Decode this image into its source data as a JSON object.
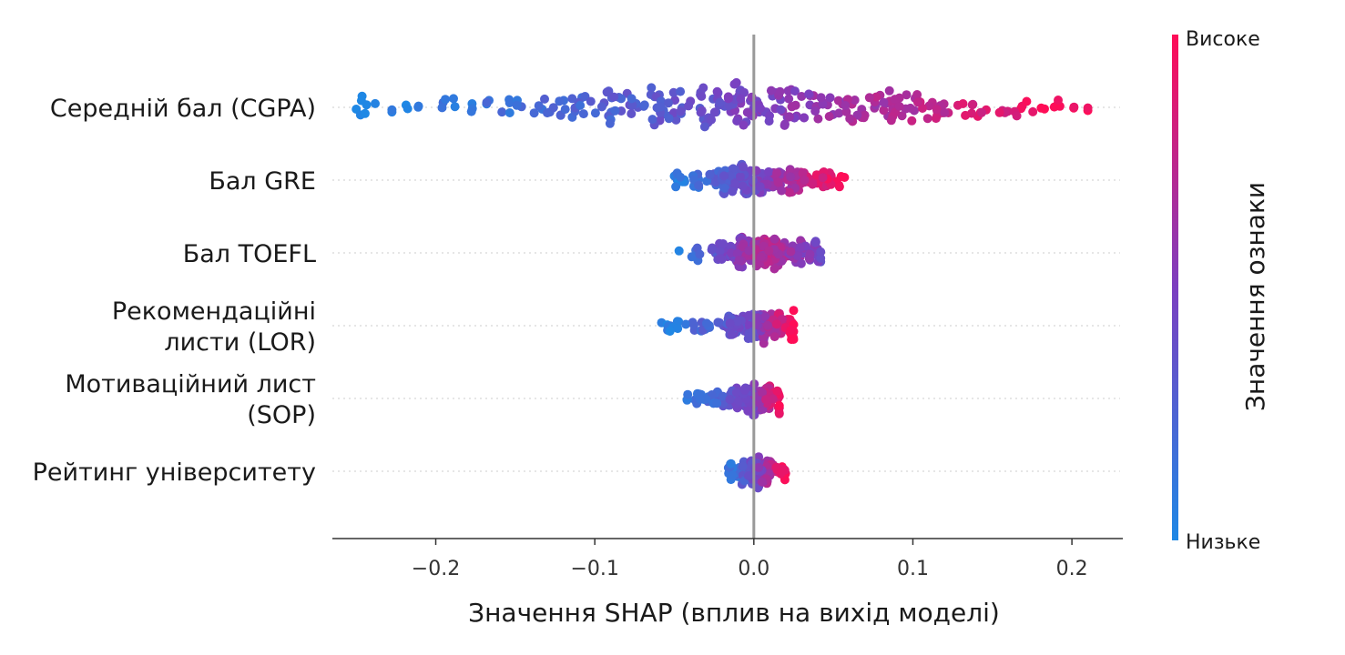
{
  "chart_data": {
    "type": "scatter",
    "subtype": "shap-beeswarm",
    "xlabel": "Значення SHAP (вплив на вихід моделі)",
    "xlim": [
      -0.265,
      0.232
    ],
    "xticks": [
      -0.2,
      -0.1,
      0.0,
      0.1,
      0.2
    ],
    "xtick_labels": [
      "−0.2",
      "−0.1",
      "0.0",
      "0.1",
      "0.2"
    ],
    "grid": false,
    "zero_line": true,
    "colorbar": {
      "title": "Значення ознаки",
      "high_label": "Високе",
      "low_label": "Низьке",
      "low_color": "#1e88e5",
      "mid_color": "#7c3fc0",
      "high_color": "#ff0d57"
    },
    "features": [
      {
        "label_lines": [
          "Середній бал (CGPA)"
        ],
        "value_range": [
          -0.25,
          0.21
        ],
        "center": 0.005,
        "spread": 0.075,
        "max_jitter": 0.45,
        "color_slope": 1.0,
        "colors_by_shap": [
          {
            "shap": -0.25,
            "feature_value": 0.0
          },
          {
            "shap": -0.03,
            "feature_value": 0.38
          },
          {
            "shap": 0.0,
            "feature_value": 0.5
          },
          {
            "shap": 0.1,
            "feature_value": 0.72
          },
          {
            "shap": 0.21,
            "feature_value": 1.0
          }
        ],
        "count": 300
      },
      {
        "label_lines": [
          "Бал GRE"
        ],
        "value_range": [
          -0.05,
          0.057
        ],
        "center": 0.003,
        "spread": 0.018,
        "max_jitter": 0.3,
        "colors_by_shap": [
          {
            "shap": -0.05,
            "feature_value": 0.05
          },
          {
            "shap": 0.0,
            "feature_value": 0.45
          },
          {
            "shap": 0.057,
            "feature_value": 1.0
          }
        ],
        "count": 200
      },
      {
        "label_lines": [
          "Бал TOEFL"
        ],
        "value_range": [
          -0.047,
          0.042
        ],
        "center": 0.006,
        "spread": 0.016,
        "max_jitter": 0.3,
        "colors_by_shap": [
          {
            "shap": -0.047,
            "feature_value": 0.05
          },
          {
            "shap": 0.008,
            "feature_value": 0.75
          },
          {
            "shap": 0.042,
            "feature_value": 0.45
          }
        ],
        "count": 200
      },
      {
        "label_lines": [
          "Рекомендаційні",
          "листи (LOR)"
        ],
        "value_range": [
          -0.058,
          0.025
        ],
        "center": 0.004,
        "spread": 0.012,
        "max_jitter": 0.32,
        "colors_by_shap": [
          {
            "shap": -0.058,
            "feature_value": 0.05
          },
          {
            "shap": 0.0,
            "feature_value": 0.45
          },
          {
            "shap": 0.025,
            "feature_value": 1.0
          }
        ],
        "count": 200
      },
      {
        "label_lines": [
          "Мотиваційний лист",
          "(SOP)"
        ],
        "value_range": [
          -0.042,
          0.016
        ],
        "center": 0.0,
        "spread": 0.009,
        "max_jitter": 0.32,
        "colors_by_shap": [
          {
            "shap": -0.042,
            "feature_value": 0.05
          },
          {
            "shap": 0.0,
            "feature_value": 0.5
          },
          {
            "shap": 0.016,
            "feature_value": 0.95
          }
        ],
        "count": 180
      },
      {
        "label_lines": [
          "Рейтинг університету"
        ],
        "value_range": [
          -0.016,
          0.02
        ],
        "center": 0.002,
        "spread": 0.006,
        "max_jitter": 0.3,
        "colors_by_shap": [
          {
            "shap": -0.016,
            "feature_value": 0.1
          },
          {
            "shap": 0.0,
            "feature_value": 0.4
          },
          {
            "shap": 0.02,
            "feature_value": 1.0
          }
        ],
        "count": 160
      }
    ]
  }
}
